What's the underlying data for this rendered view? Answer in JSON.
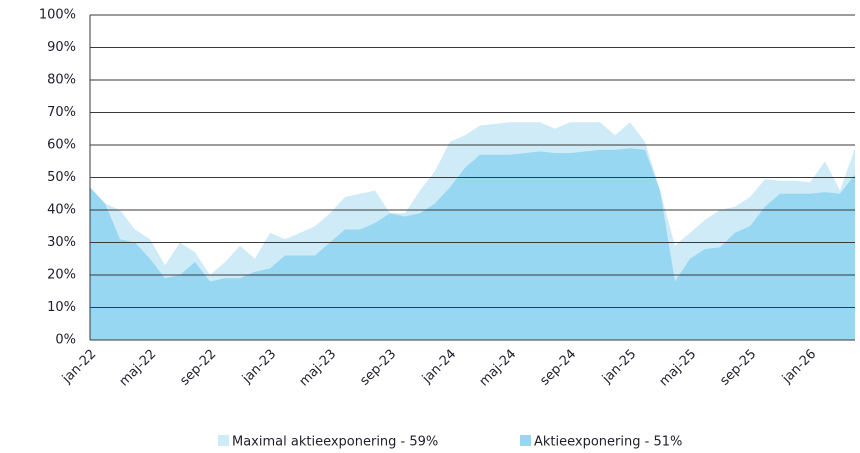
{
  "chart_data": {
    "type": "area",
    "categories": [
      "jan-22",
      null,
      null,
      null,
      "maj-22",
      null,
      null,
      null,
      "sep-22",
      null,
      null,
      null,
      "jan-23",
      null,
      null,
      null,
      "maj-23",
      null,
      null,
      null,
      "sep-23",
      null,
      null,
      null,
      "jan-24",
      null,
      null,
      null,
      "maj-24",
      null,
      null,
      null,
      "sep-24",
      null,
      null,
      null,
      "jan-25",
      null,
      null,
      null,
      "maj-25",
      null,
      null,
      null,
      "sep-25",
      null,
      null,
      null,
      "jan-26",
      null,
      null,
      null
    ],
    "series": [
      {
        "name": "Maximal aktieexponering - 59%",
        "color": "#cfebf8",
        "values": [
          47,
          42,
          40,
          34,
          31,
          23,
          30,
          27,
          20,
          24,
          29,
          25,
          33,
          31,
          33,
          35,
          39,
          44,
          45,
          46,
          39,
          39,
          46,
          52,
          61,
          63,
          66,
          66.5,
          67,
          67,
          67,
          65,
          67,
          67,
          67,
          63,
          67,
          61,
          46,
          29,
          33,
          37,
          40,
          41,
          44,
          49.5,
          49,
          49,
          48.5,
          55,
          46,
          59
        ]
      },
      {
        "name": "Aktieexponering - 51%",
        "color": "#97d7f1",
        "values": [
          47,
          42,
          31,
          30,
          25,
          19,
          20,
          24,
          18,
          19,
          19,
          21,
          22,
          26,
          26,
          26,
          30,
          34,
          34,
          36,
          39,
          38,
          39,
          42,
          47,
          53,
          57,
          57,
          57,
          57.5,
          58,
          57.5,
          57.5,
          58,
          58.5,
          58.5,
          59,
          58.5,
          46,
          18,
          25,
          28,
          28.5,
          33,
          35,
          41,
          45,
          45,
          45,
          45.5,
          45,
          51
        ]
      }
    ],
    "ylim": [
      0,
      100
    ],
    "yticks": [
      {
        "value": 0,
        "label": "0%"
      },
      {
        "value": 10,
        "label": "10%"
      },
      {
        "value": 20,
        "label": "20%"
      },
      {
        "value": 30,
        "label": "30%"
      },
      {
        "value": 40,
        "label": "40%"
      },
      {
        "value": 50,
        "label": "50%"
      },
      {
        "value": 60,
        "label": "60%"
      },
      {
        "value": 70,
        "label": "70%"
      },
      {
        "value": 80,
        "label": "80%"
      },
      {
        "value": 90,
        "label": "90%"
      },
      {
        "value": 100,
        "label": "100%"
      }
    ],
    "grid": true,
    "legend": "bottom"
  }
}
